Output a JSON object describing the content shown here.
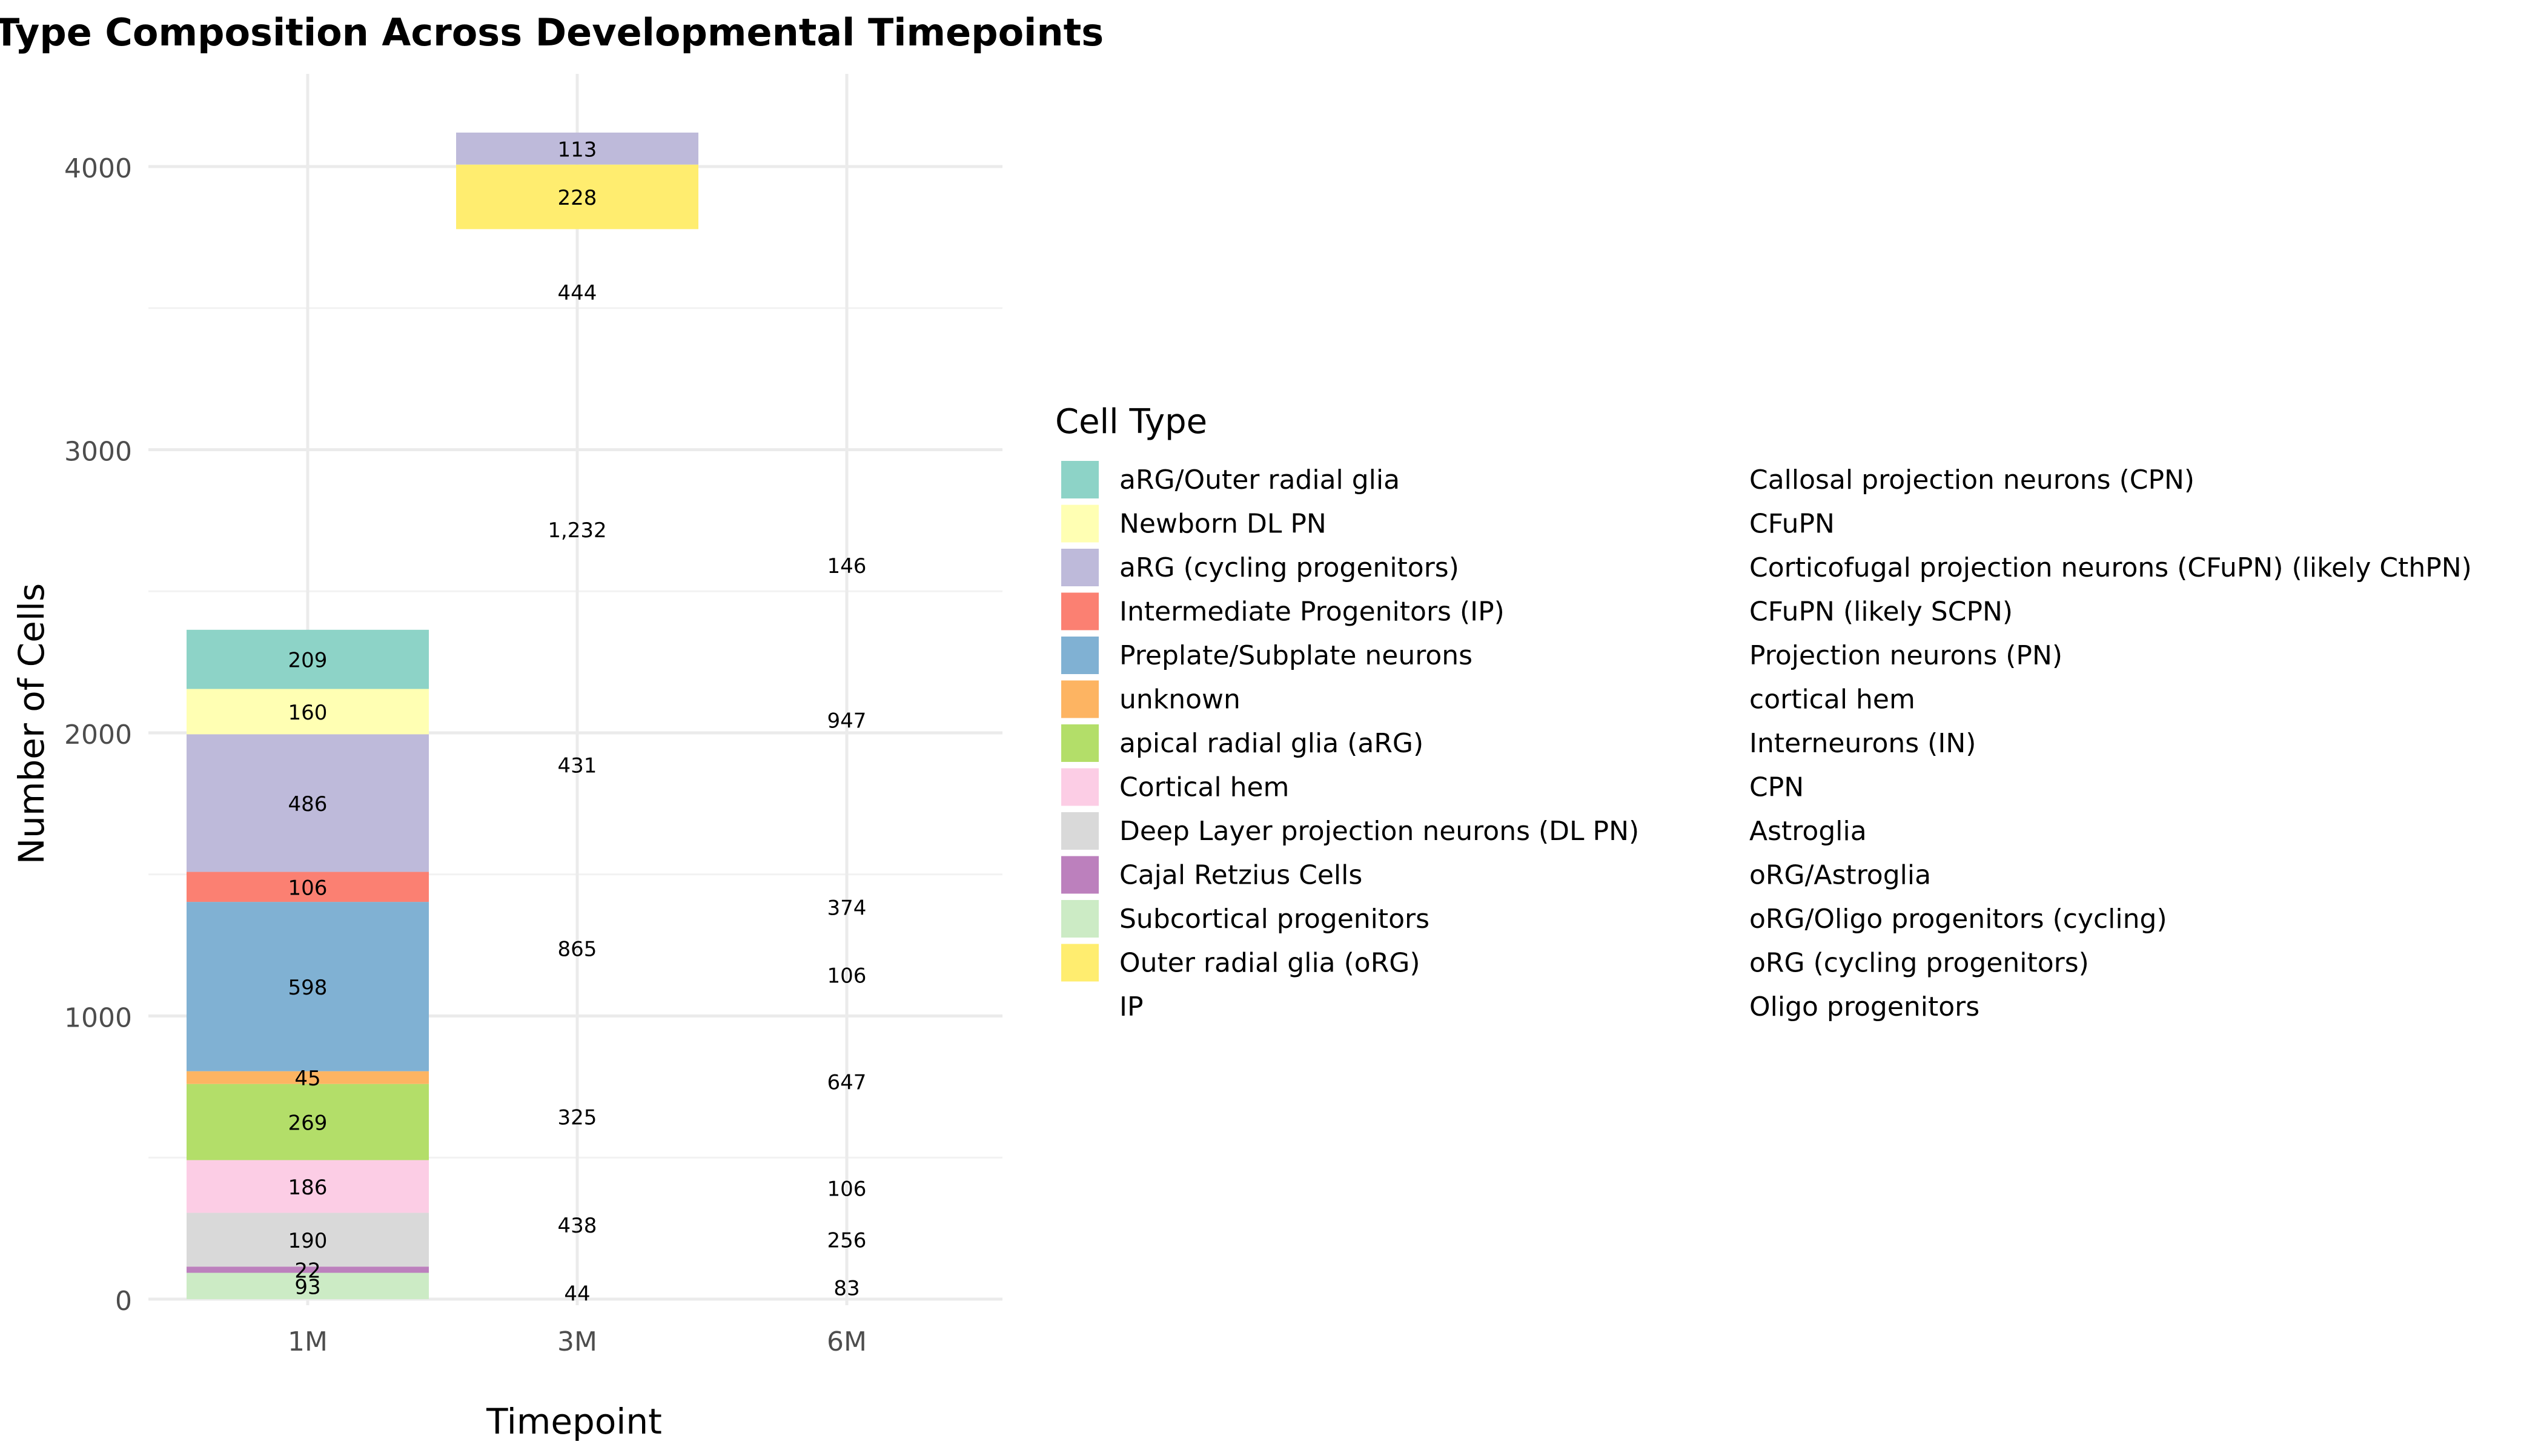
{
  "chart_data": {
    "type": "bar",
    "stacked": true,
    "title": "Type Composition Across Developmental Timepoints",
    "xlabel": "Timepoint",
    "ylabel": "Number of Cells",
    "ylim": [
      0,
      4300
    ],
    "y_ticks": [
      0,
      1000,
      2000,
      3000,
      4000
    ],
    "y_tick_labels": [
      "0",
      "1000",
      "2000",
      "3000",
      "4000"
    ],
    "categories": [
      "1M",
      "3M",
      "6M"
    ],
    "grid": true,
    "legend_position": "right",
    "legend_title": "Cell Type",
    "legend": [
      {
        "name": "aRG/Outer radial glia",
        "color": "#8DD3C7"
      },
      {
        "name": "Newborn DL PN",
        "color": "#FFFFB3"
      },
      {
        "name": "aRG (cycling progenitors)",
        "color": "#BEBADA"
      },
      {
        "name": "Intermediate Progenitors (IP)",
        "color": "#FB8072"
      },
      {
        "name": "Preplate/Subplate neurons",
        "color": "#80B1D3"
      },
      {
        "name": "unknown",
        "color": "#FDB462"
      },
      {
        "name": "apical radial glia (aRG)",
        "color": "#B3DE69"
      },
      {
        "name": "Cortical hem",
        "color": "#FCCDE5"
      },
      {
        "name": "Deep Layer projection neurons (DL PN)",
        "color": "#D9D9D9"
      },
      {
        "name": "Cajal Retzius Cells",
        "color": "#BC80BD"
      },
      {
        "name": "Subcortical progenitors",
        "color": "#CCEBC5"
      },
      {
        "name": "Outer radial glia (oRG)",
        "color": "#FFED6F"
      },
      {
        "name": "IP",
        "color": null
      },
      {
        "name": "Callosal projection neurons (CPN)",
        "color": null
      },
      {
        "name": "CFuPN",
        "color": null
      },
      {
        "name": "Corticofugal projection neurons (CFuPN) (likely CthPN)",
        "color": null
      },
      {
        "name": "CFuPN (likely SCPN)",
        "color": null
      },
      {
        "name": "Projection neurons (PN)",
        "color": null
      },
      {
        "name": "cortical hem",
        "color": null
      },
      {
        "name": "Interneurons (IN)",
        "color": null
      },
      {
        "name": "CPN",
        "color": null
      },
      {
        "name": "Astroglia",
        "color": null
      },
      {
        "name": "oRG/Astroglia",
        "color": null
      },
      {
        "name": "oRG/Oligo progenitors (cycling)",
        "color": null
      },
      {
        "name": "oRG (cycling progenitors)",
        "color": null
      },
      {
        "name": "Oligo progenitors",
        "color": null
      }
    ],
    "stacks": [
      {
        "category": "1M",
        "segments": [
          {
            "value": 93,
            "label": "93",
            "color": "#CCEBC5"
          },
          {
            "value": 22,
            "label": "22",
            "color": "#BC80BD"
          },
          {
            "value": 190,
            "label": "190",
            "color": "#D9D9D9"
          },
          {
            "value": 186,
            "label": "186",
            "color": "#FCCDE5"
          },
          {
            "value": 269,
            "label": "269",
            "color": "#B3DE69"
          },
          {
            "value": 45,
            "label": "45",
            "color": "#FDB462"
          },
          {
            "value": 598,
            "label": "598",
            "color": "#80B1D3"
          },
          {
            "value": 106,
            "label": "106",
            "color": "#FB8072"
          },
          {
            "value": 486,
            "label": "486",
            "color": "#BEBADA"
          },
          {
            "value": 160,
            "label": "160",
            "color": "#FFFFB3"
          },
          {
            "value": 209,
            "label": "209",
            "color": "#8DD3C7"
          }
        ]
      },
      {
        "category": "3M",
        "segments": [
          {
            "value": 44,
            "label": "44",
            "color": null
          },
          {
            "value": 438,
            "label": "438",
            "color": null
          },
          {
            "value": 325,
            "label": "325",
            "color": null
          },
          {
            "value": 865,
            "label": "865",
            "color": null
          },
          {
            "value": 431,
            "label": "431",
            "color": null
          },
          {
            "value": 1232,
            "label": "1,232",
            "color": null
          },
          {
            "value": 444,
            "label": "444",
            "color": null
          },
          {
            "value": 228,
            "label": "228",
            "color": "#FFED6F"
          },
          {
            "value": 113,
            "label": "113",
            "color": "#BEBADA"
          }
        ]
      },
      {
        "category": "6M",
        "segments": [
          {
            "value": 83,
            "label": "83",
            "color": null
          },
          {
            "value": 256,
            "label": "256",
            "color": null
          },
          {
            "value": 106,
            "label": "106",
            "color": null
          },
          {
            "value": 647,
            "label": "647",
            "color": null
          },
          {
            "value": 106,
            "label": "106",
            "color": null
          },
          {
            "value": 374,
            "label": "374",
            "color": null
          },
          {
            "value": 947,
            "label": "947",
            "color": null
          },
          {
            "value": 146,
            "label": "146",
            "color": null
          }
        ]
      }
    ]
  }
}
